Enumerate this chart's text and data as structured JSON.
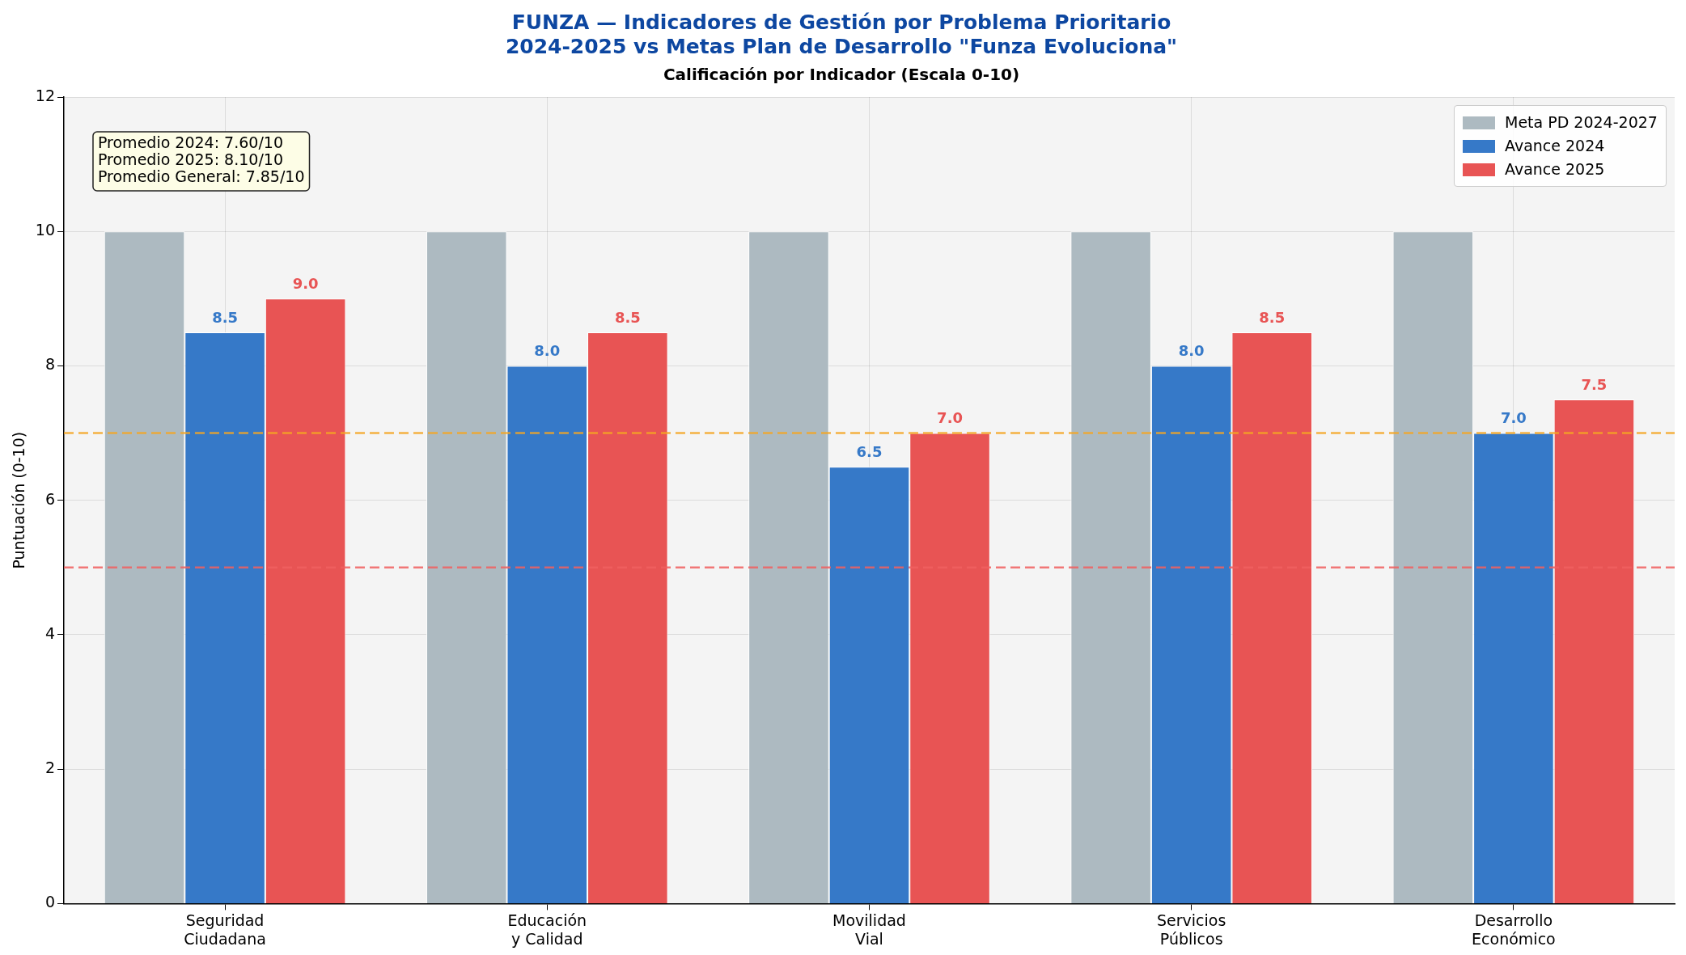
{
  "chart_data": {
    "type": "bar",
    "title": "FUNZA — Indicadores de Gestión por Problema Prioritario\n2024-2025 vs Metas Plan de Desarrollo \"Funza Evoluciona\"",
    "subtitle": "Calificación por Indicador (Escala 0-10)",
    "ylabel": "Puntuación (0-10)",
    "categories": [
      "Seguridad\nCiudadana",
      "Educación\ny Calidad",
      "Movilidad\nVial",
      "Servicios\nPúblicos",
      "Desarrollo\nEconómico"
    ],
    "series": [
      {
        "name": "Meta PD 2024-2027",
        "color": "#adbac1",
        "values": [
          10,
          10,
          10,
          10,
          10
        ]
      },
      {
        "name": "Avance 2024",
        "color": "#3679c8",
        "values": [
          8.5,
          8.0,
          6.5,
          8.0,
          7.0
        ],
        "value_labels": [
          "8.5",
          "8.0",
          "6.5",
          "8.0",
          "7.0"
        ]
      },
      {
        "name": "Avance 2025",
        "color": "#e85454",
        "values": [
          9.0,
          8.5,
          7.0,
          8.5,
          7.5
        ],
        "value_labels": [
          "9.0",
          "8.5",
          "7.0",
          "8.5",
          "7.5"
        ]
      }
    ],
    "ylim": [
      0,
      12
    ],
    "yticks": [
      0,
      2,
      4,
      6,
      8,
      10,
      12
    ],
    "grid": true,
    "legend": "top right",
    "ref_lines": [
      {
        "axis": "y",
        "value": 7,
        "color": "#f5a623",
        "line_style": "dashed"
      },
      {
        "axis": "y",
        "value": 5,
        "color": "#f06060",
        "line_style": "dashed"
      }
    ],
    "annotations": [
      "Promedio 2024: 7.60/10",
      "Promedio 2025: 8.10/10",
      "Promedio General: 7.85/10"
    ]
  }
}
